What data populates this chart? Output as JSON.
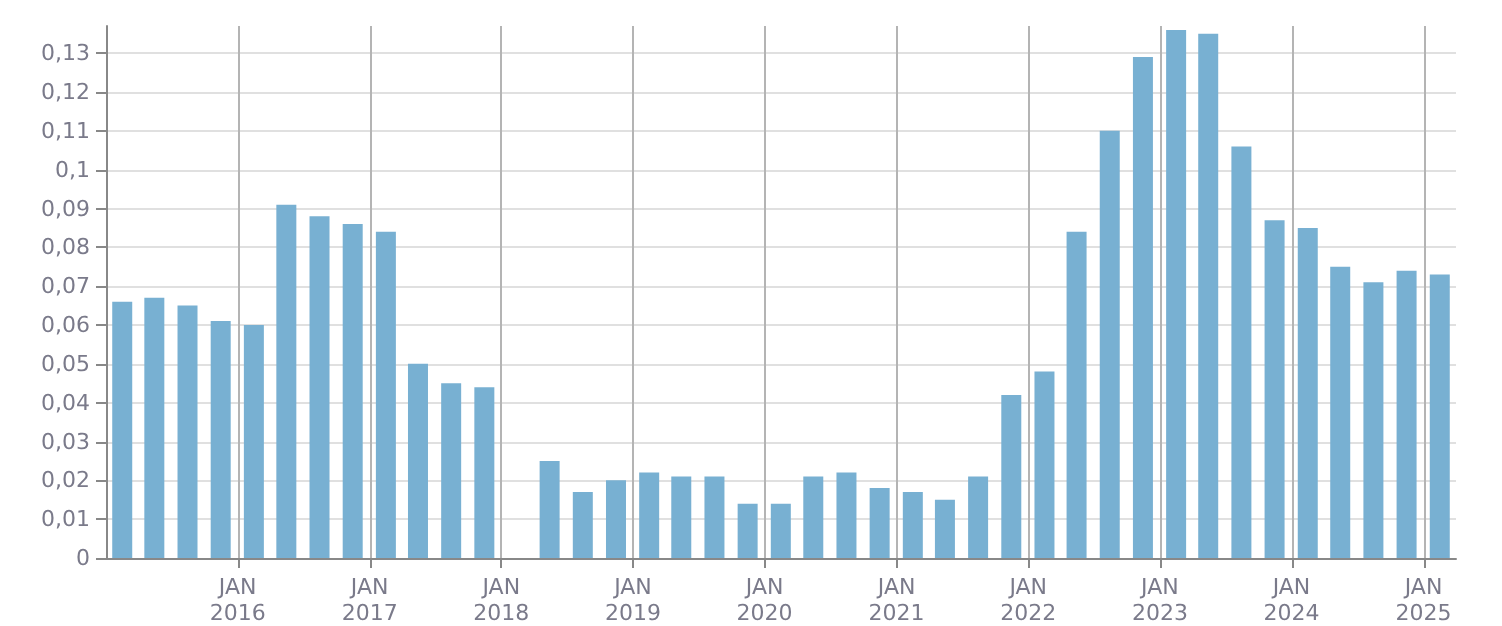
{
  "chart_data": {
    "type": "bar",
    "color": "#78b0d2",
    "x": [
      "2015-02-15",
      "2015-05-15",
      "2015-08-15",
      "2015-11-15",
      "2016-02-15",
      "2016-05-15",
      "2016-08-15",
      "2016-11-15",
      "2017-02-15",
      "2017-05-15",
      "2017-08-15",
      "2017-11-15",
      "2018-02-15",
      "2018-05-15",
      "2018-08-15",
      "2018-11-15",
      "2019-02-15",
      "2019-05-15",
      "2019-08-15",
      "2019-11-15",
      "2020-02-15",
      "2020-05-15",
      "2020-08-15",
      "2020-11-15",
      "2021-02-15",
      "2021-05-15",
      "2021-08-15",
      "2021-11-15",
      "2022-02-15",
      "2022-05-15",
      "2022-08-15",
      "2022-11-15",
      "2023-02-15",
      "2023-05-15",
      "2023-08-15",
      "2023-11-15",
      "2024-02-15",
      "2024-05-15",
      "2024-08-15",
      "2024-11-15",
      "2025-02-15"
    ],
    "values": [
      0.066,
      0.067,
      0.065,
      0.061,
      0.06,
      0.091,
      0.088,
      0.086,
      0.084,
      0.05,
      0.045,
      0.044,
      null,
      0.025,
      0.017,
      0.02,
      0.022,
      0.021,
      0.021,
      0.014,
      0.014,
      0.021,
      0.022,
      0.018,
      0.017,
      0.015,
      0.021,
      0.042,
      0.048,
      0.084,
      0.11,
      0.129,
      0.136,
      0.135,
      0.106,
      0.087,
      0.085,
      0.075,
      0.071,
      0.074,
      0.073
    ],
    "xlim": [
      "2015-01-01",
      "2025-04-01"
    ],
    "xticks": [
      {
        "value": "2016-01-01",
        "label": "JAN\n2016"
      },
      {
        "value": "2017-01-01",
        "label": "JAN\n2017"
      },
      {
        "value": "2018-01-01",
        "label": "JAN\n2018"
      },
      {
        "value": "2019-01-01",
        "label": "JAN\n2019"
      },
      {
        "value": "2020-01-01",
        "label": "JAN\n2020"
      },
      {
        "value": "2021-01-01",
        "label": "JAN\n2021"
      },
      {
        "value": "2022-01-01",
        "label": "JAN\n2022"
      },
      {
        "value": "2023-01-01",
        "label": "JAN\n2023"
      },
      {
        "value": "2024-01-01",
        "label": "JAN\n2024"
      },
      {
        "value": "2025-01-01",
        "label": "JAN\n2025"
      }
    ],
    "ylim": [
      0,
      0.137
    ],
    "yticks": [
      {
        "value": 0,
        "label": "0"
      },
      {
        "value": 0.01,
        "label": "0,01"
      },
      {
        "value": 0.02,
        "label": "0,02"
      },
      {
        "value": 0.03,
        "label": "0,03"
      },
      {
        "value": 0.04,
        "label": "0,04"
      },
      {
        "value": 0.05,
        "label": "0,05"
      },
      {
        "value": 0.06,
        "label": "0,06"
      },
      {
        "value": 0.07,
        "label": "0,07"
      },
      {
        "value": 0.08,
        "label": "0,08"
      },
      {
        "value": 0.09,
        "label": "0,09"
      },
      {
        "value": 0.1,
        "label": "0,1"
      },
      {
        "value": 0.11,
        "label": "0,11"
      },
      {
        "value": 0.12,
        "label": "0,12"
      },
      {
        "value": 0.13,
        "label": "0,13"
      }
    ],
    "grid": true
  }
}
